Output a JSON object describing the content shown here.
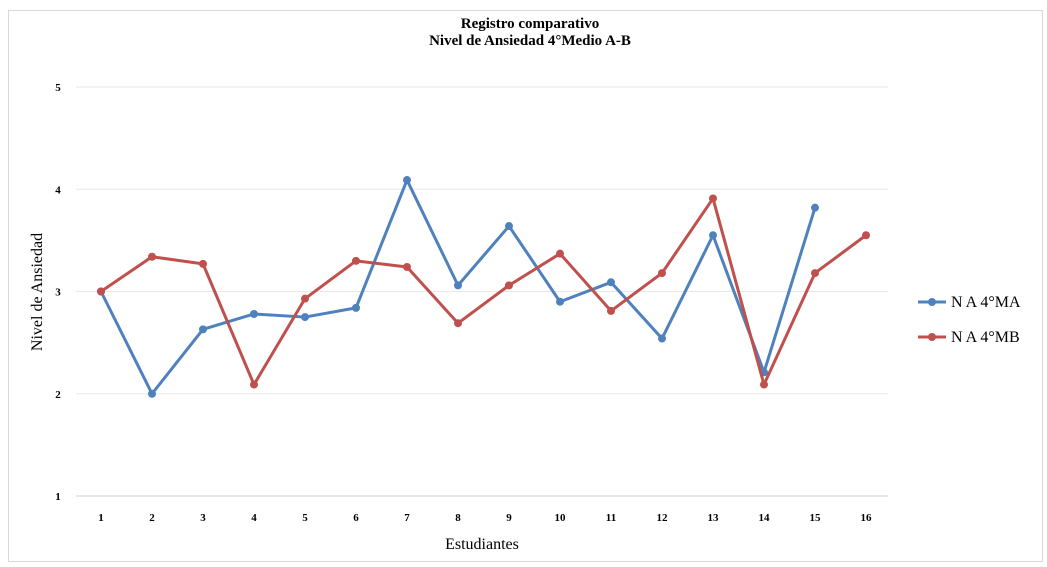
{
  "chart_data": {
    "type": "line",
    "title": "Registro comparativo",
    "subtitle": "Nivel de Ansiedad 4°Medio A-B",
    "xlabel": "Estudiantes",
    "ylabel": "Nivel de Ansiedad",
    "categories": [
      "1",
      "2",
      "3",
      "4",
      "5",
      "6",
      "7",
      "8",
      "9",
      "10",
      "11",
      "12",
      "13",
      "14",
      "15",
      "16"
    ],
    "yticks": [
      "1",
      "2",
      "3",
      "4",
      "5"
    ],
    "ylim": [
      1,
      5
    ],
    "grid": true,
    "legend_position": "right",
    "series": [
      {
        "name": "N A 4°MA",
        "color": "#4f81bd",
        "values": [
          3.0,
          2.0,
          2.63,
          2.78,
          2.75,
          2.84,
          4.09,
          3.06,
          3.64,
          2.9,
          3.09,
          2.54,
          3.55,
          2.21,
          3.82,
          null
        ]
      },
      {
        "name": "N A 4°MB",
        "color": "#c0504d",
        "values": [
          3.0,
          3.34,
          3.27,
          2.09,
          2.93,
          3.3,
          3.24,
          2.69,
          3.06,
          3.37,
          2.81,
          3.18,
          3.91,
          2.09,
          3.18,
          3.55
        ]
      }
    ]
  }
}
